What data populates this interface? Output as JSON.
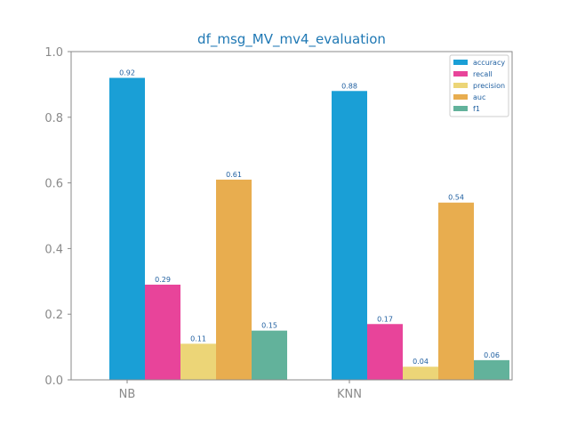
{
  "chart_data": {
    "type": "bar",
    "title": "df_msg_MV_mv4_evaluation",
    "xlabel": "",
    "ylabel": "",
    "categories": [
      "NB",
      "KNN"
    ],
    "ylim": [
      0,
      1.0
    ],
    "yticks": [
      "0.0",
      "0.2",
      "0.4",
      "0.6",
      "0.8",
      "1.0"
    ],
    "grid": false,
    "legend_position": "top-right",
    "series": [
      {
        "name": "accuracy",
        "color": "#1a9fd6",
        "values": [
          0.92,
          0.88
        ],
        "labels": [
          "0.92",
          "0.88"
        ]
      },
      {
        "name": "recall",
        "color": "#e8449a",
        "values": [
          0.29,
          0.17
        ],
        "labels": [
          "0.29",
          "0.17"
        ]
      },
      {
        "name": "precision",
        "color": "#ecd577",
        "values": [
          0.11,
          0.04
        ],
        "labels": [
          "0.11",
          "0.04"
        ]
      },
      {
        "name": "auc",
        "color": "#e8ad4f",
        "values": [
          0.61,
          0.54
        ],
        "labels": [
          "0.61",
          "0.54"
        ]
      },
      {
        "name": "f1",
        "color": "#62b29b",
        "values": [
          0.15,
          0.06
        ],
        "labels": [
          "0.15",
          "0.06"
        ]
      }
    ]
  }
}
